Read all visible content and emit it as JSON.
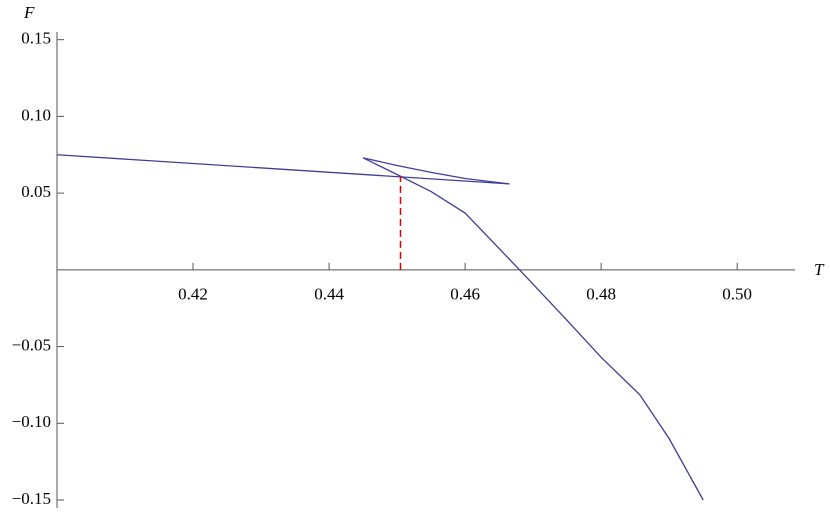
{
  "chart_data": {
    "type": "line",
    "x_label": "T",
    "y_label": "F",
    "xlim": [
      0.4,
      0.5085
    ],
    "ylim": [
      -0.15,
      0.155
    ],
    "xticks": [
      0.42,
      0.44,
      0.46,
      0.48,
      0.5
    ],
    "xtick_labels": [
      "0.42",
      "0.44",
      "0.46",
      "0.48",
      "0.50"
    ],
    "yticks": [
      {
        "value": -0.15,
        "label": "−0.15"
      },
      {
        "value": -0.1,
        "label": "−0.10"
      },
      {
        "value": -0.05,
        "label": "−0.05"
      },
      0.05,
      {
        "value": 0.1,
        "label": "0.10"
      },
      0.15
    ],
    "series": [
      {
        "color": "#3f3f9a",
        "x": [
          0.4,
          0.4665
        ],
        "values": [
          0.075,
          0.056
        ]
      },
      {
        "color": "#3f3f9a",
        "x": [
          0.4665,
          0.46,
          0.455,
          0.45,
          0.445
        ],
        "values": [
          0.056,
          0.0595,
          0.0635,
          0.068,
          0.073
        ]
      },
      {
        "color": "#3f3f9a",
        "x": [
          0.445,
          0.4505,
          0.455,
          0.46,
          0.468,
          0.475,
          0.48,
          0.4857,
          0.49,
          0.495
        ],
        "values": [
          0.073,
          0.061,
          0.051,
          0.037,
          0.0,
          -0.033,
          -0.057,
          -0.0815,
          -0.11,
          -0.15
        ]
      }
    ],
    "vlines": [
      {
        "x": 0.4505,
        "value": 0.061,
        "color": "#dd0000"
      }
    ]
  }
}
